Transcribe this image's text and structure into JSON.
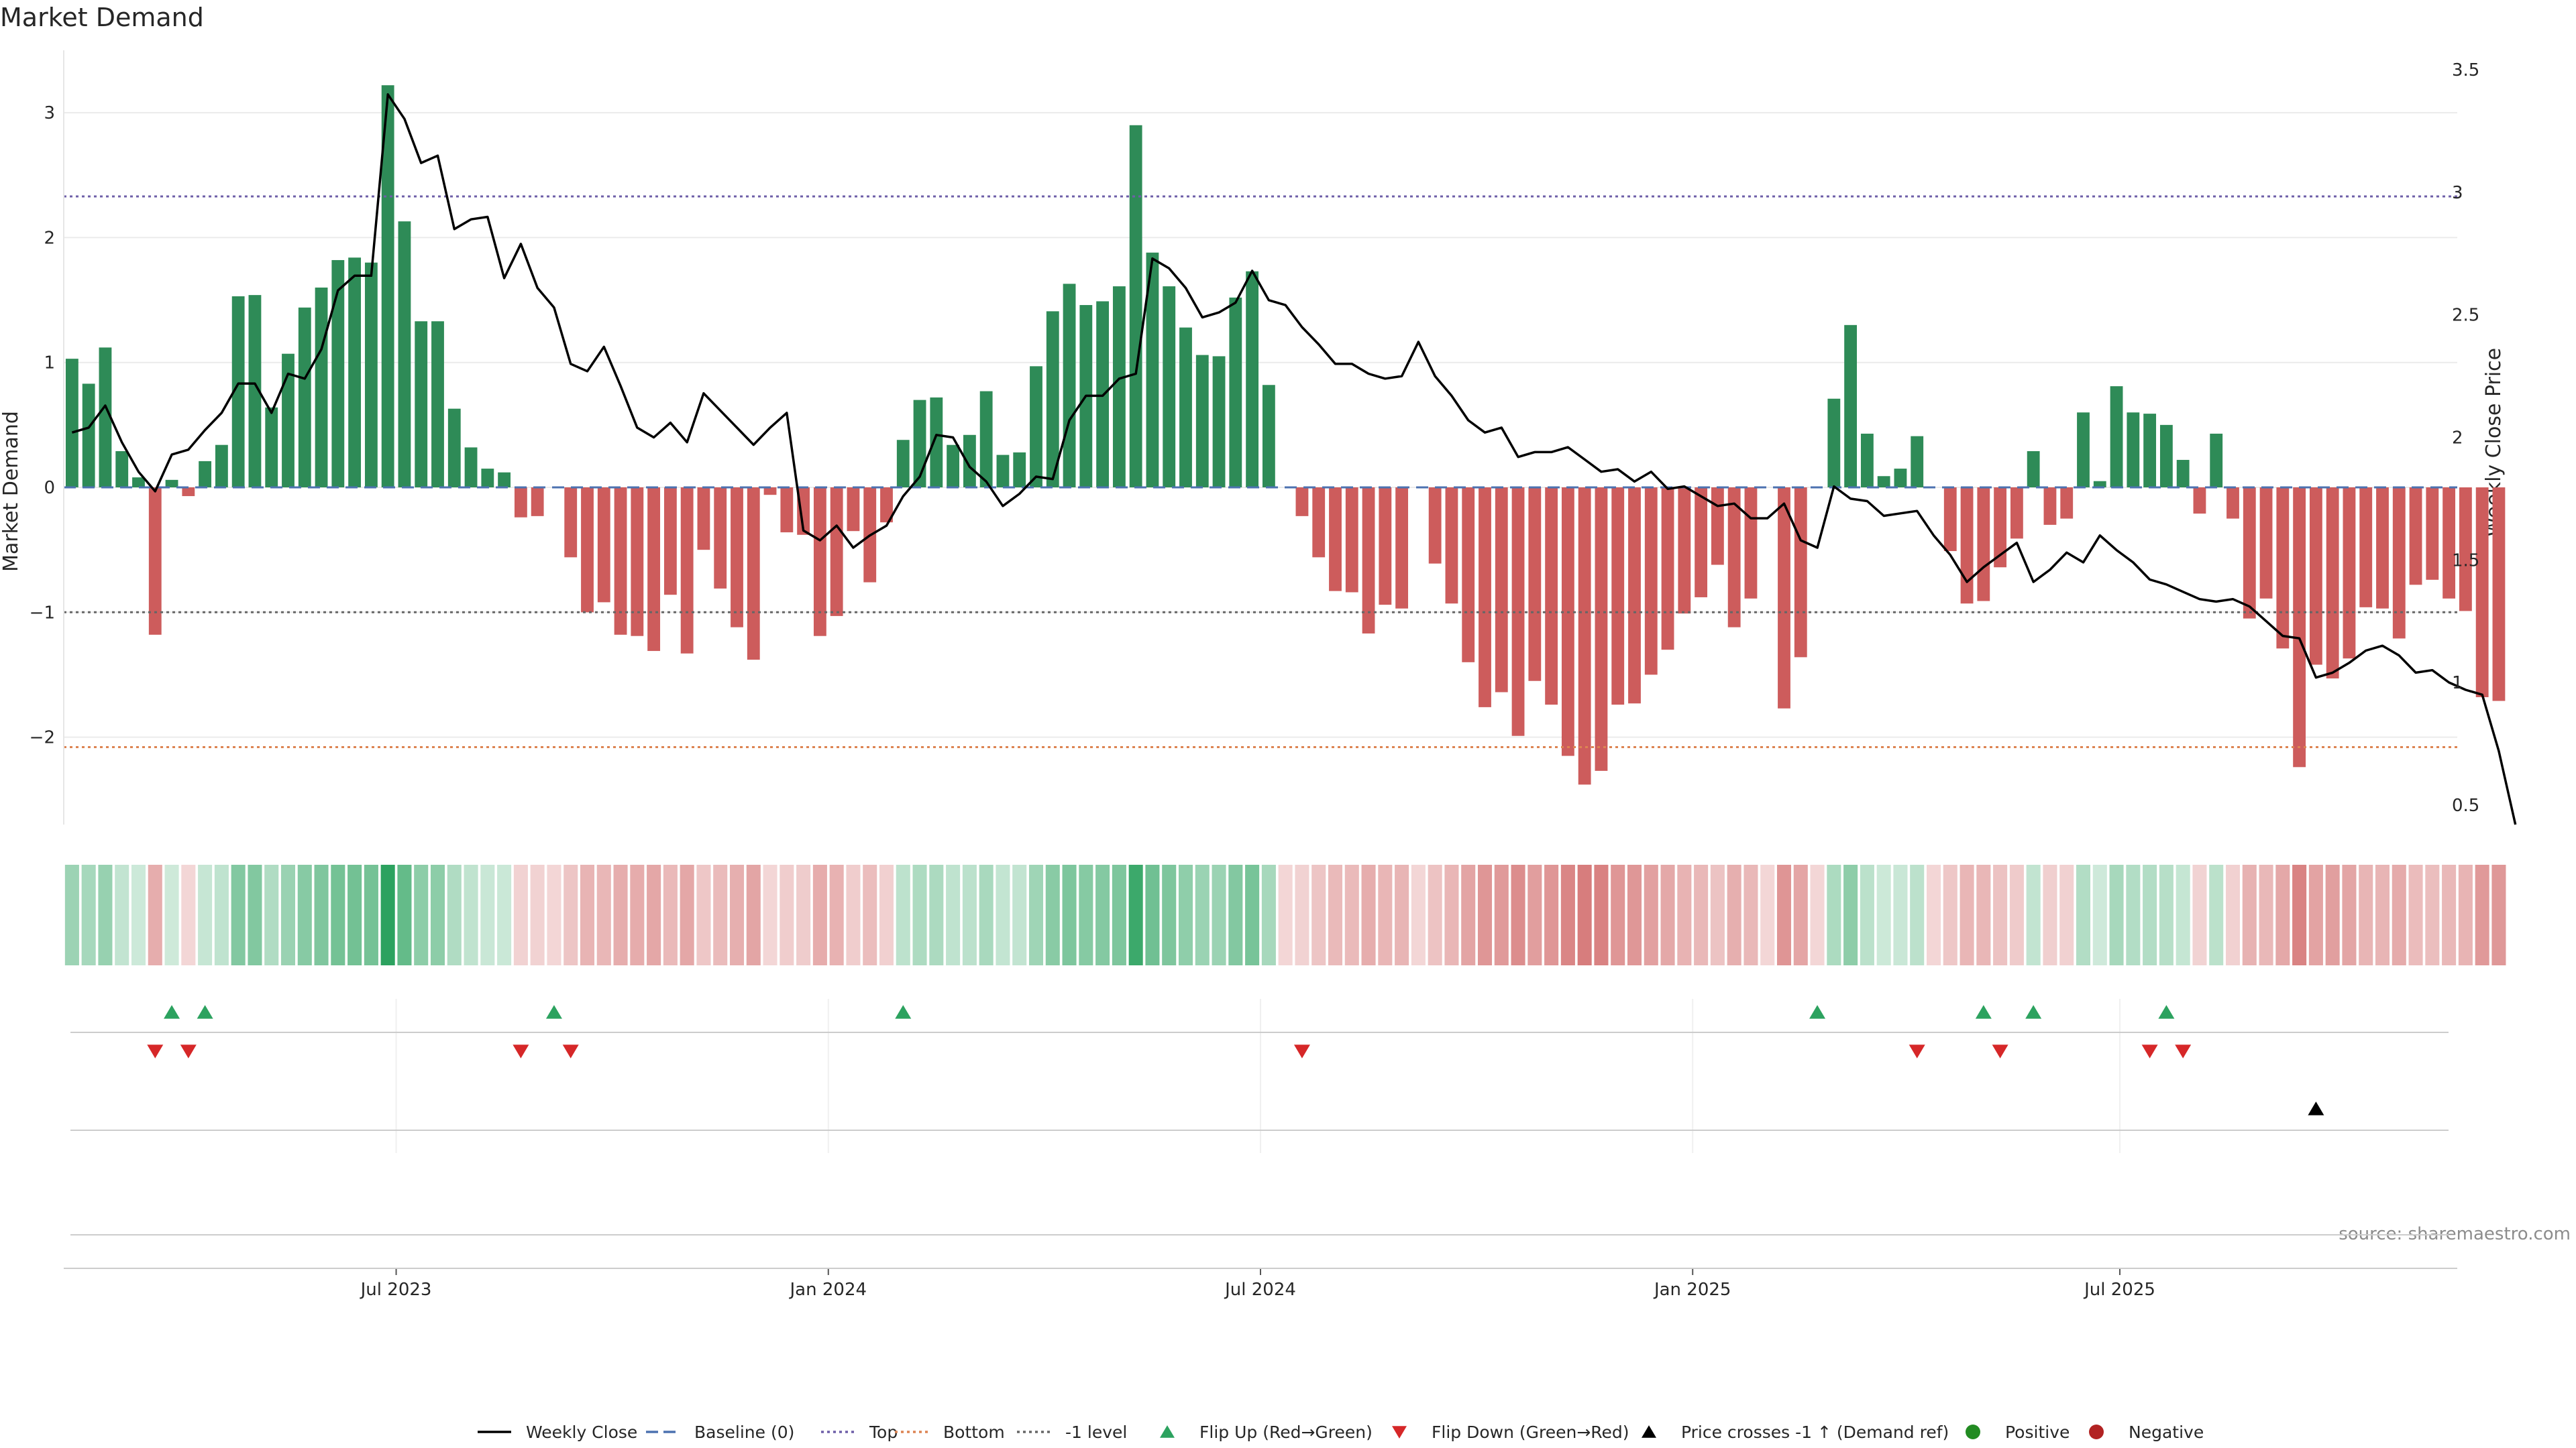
{
  "chart_data": {
    "type": "bar",
    "title": "Market Demand",
    "ylabel": "Market Demand",
    "y2label": "Weekly Close Price",
    "ylim": [
      -2.7,
      3.5
    ],
    "y2lim": [
      0.42,
      3.58
    ],
    "yticks": [
      -2,
      -1,
      0,
      1,
      2,
      3
    ],
    "y2ticks": [
      0.5,
      1,
      1.5,
      2,
      2.5,
      3,
      3.5
    ],
    "x_tick_labels": [
      "Jul 2023",
      "Jan 2024",
      "Jul 2024",
      "Jan 2025",
      "Jul 2025"
    ],
    "x_tick_weeks": [
      19.5,
      45.5,
      71.5,
      97.5,
      123.2
    ],
    "x_range_weeks": [
      -0.5,
      143.5
    ],
    "levels": {
      "top": 2.33,
      "bottom": -2.08,
      "minus_one": -1,
      "baseline": 0
    },
    "source": "source: sharemaestro.com",
    "demand": [
      1.03,
      0.83,
      1.12,
      0.29,
      0.08,
      -1.18,
      0.06,
      -0.07,
      0.21,
      0.34,
      1.53,
      1.54,
      0.64,
      1.07,
      1.44,
      1.6,
      1.82,
      1.84,
      1.8,
      3.22,
      2.13,
      1.33,
      1.33,
      0.63,
      0.32,
      0.15,
      0.12,
      -0.24,
      -0.23,
      0,
      -0.56,
      -1,
      -0.92,
      -1.18,
      -1.19,
      -1.31,
      -0.86,
      -1.33,
      -0.5,
      -0.81,
      -1.12,
      -1.38,
      -0.06,
      -0.36,
      -0.38,
      -1.19,
      -1.03,
      -0.35,
      -0.76,
      -0.28,
      0.38,
      0.7,
      0.72,
      0.34,
      0.42,
      0.77,
      0.26,
      0.28,
      0.97,
      1.41,
      1.63,
      1.46,
      1.49,
      1.61,
      2.9,
      1.88,
      1.61,
      1.28,
      1.06,
      1.05,
      1.52,
      1.73,
      0.82,
      0,
      -0.23,
      -0.56,
      -0.83,
      -0.84,
      -1.17,
      -0.94,
      -0.97,
      0,
      -0.61,
      -0.93,
      -1.4,
      -1.76,
      -1.64,
      -1.99,
      -1.55,
      -1.74,
      -2.15,
      -2.38,
      -2.27,
      -1.74,
      -1.73,
      -1.5,
      -1.3,
      -1.01,
      -0.88,
      -0.62,
      -1.12,
      -0.89,
      0,
      -1.77,
      -1.36,
      0,
      0.71,
      1.3,
      0.43,
      0.09,
      0.15,
      0.41,
      0,
      -0.51,
      -0.93,
      -0.91,
      -0.64,
      -0.41,
      0.29,
      -0.3,
      -0.25,
      0.6,
      0.05,
      0.81,
      0.6,
      0.59,
      0.5,
      0.22,
      -0.21,
      0.43,
      -0.25,
      -1.05,
      -0.89,
      -1.29,
      -2.24,
      -1.42,
      -1.53,
      -1.37,
      -0.96,
      -0.97,
      -1.21,
      -0.78,
      -0.74,
      -0.89,
      -0.99,
      -1.68,
      -1.71
    ],
    "price": [
      2.02,
      2.04,
      2.13,
      1.98,
      1.86,
      1.78,
      1.93,
      1.95,
      2.03,
      2.1,
      2.22,
      2.22,
      2.1,
      2.26,
      2.24,
      2.36,
      2.6,
      2.66,
      2.66,
      3.4,
      3.3,
      3.12,
      3.15,
      2.85,
      2.89,
      2.9,
      2.65,
      2.79,
      2.61,
      2.53,
      2.3,
      2.27,
      2.37,
      2.21,
      2.04,
      2,
      2.06,
      1.98,
      2.18,
      2.11,
      2.04,
      1.97,
      2.04,
      2.1,
      1.62,
      1.58,
      1.64,
      1.55,
      1.6,
      1.64,
      1.76,
      1.84,
      2.01,
      2,
      1.88,
      1.82,
      1.72,
      1.77,
      1.84,
      1.83,
      2.07,
      2.17,
      2.17,
      2.24,
      2.26,
      2.73,
      2.69,
      2.61,
      2.49,
      2.51,
      2.55,
      2.68,
      2.56,
      2.54,
      2.45,
      2.38,
      2.3,
      2.3,
      2.26,
      2.24,
      2.25,
      2.39,
      2.25,
      2.17,
      2.07,
      2.02,
      2.04,
      1.92,
      1.94,
      1.94,
      1.96,
      1.91,
      1.86,
      1.87,
      1.82,
      1.86,
      1.79,
      1.8,
      1.76,
      1.72,
      1.73,
      1.67,
      1.67,
      1.73,
      1.58,
      1.55,
      1.8,
      1.75,
      1.74,
      1.68,
      1.69,
      1.7,
      1.6,
      1.52,
      1.41,
      1.47,
      1.52,
      1.57,
      1.41,
      1.46,
      1.53,
      1.49,
      1.6,
      1.54,
      1.49,
      1.42,
      1.4,
      1.37,
      1.34,
      1.33,
      1.34,
      1.31,
      1.25,
      1.19,
      1.18,
      1.02,
      1.04,
      1.08,
      1.13,
      1.15,
      1.11,
      1.04,
      1.05,
      1,
      0.97,
      0.95,
      0.72,
      0.42
    ],
    "flip_up_weeks": [
      6,
      8,
      29,
      50,
      105,
      115,
      118,
      126
    ],
    "flip_down_weeks": [
      5,
      7,
      27,
      30,
      74,
      111,
      116,
      125,
      127
    ],
    "cross_weeks": [
      135
    ],
    "legend": [
      {
        "label": "Weekly Close",
        "marker": "line-solid",
        "color": "#000000"
      },
      {
        "label": "Baseline (0)",
        "marker": "line-dash",
        "color": "#4c72b0"
      },
      {
        "label": "Top",
        "marker": "line-dot",
        "color": "#6e5fa8"
      },
      {
        "label": "Bottom",
        "marker": "line-dot",
        "color": "#dd8452"
      },
      {
        "label": "-1 level",
        "marker": "line-dot",
        "color": "#666666"
      },
      {
        "label": "Flip Up (Red→Green)",
        "marker": "tri-up",
        "color": "#2ca25f"
      },
      {
        "label": "Flip Down (Green→Red)",
        "marker": "tri-down",
        "color": "#d62728"
      },
      {
        "label": "Price crosses -1 ↑ (Demand ref)",
        "marker": "tri-up",
        "color": "#000000"
      },
      {
        "label": "Positive",
        "marker": "dot",
        "color": "#228b22"
      },
      {
        "label": "Negative",
        "marker": "dot",
        "color": "#b22222"
      }
    ],
    "colors": {
      "positive_bar": "#2e8b57",
      "negative_bar": "#cd5c5c",
      "price_line": "#000000",
      "strip_positive": "#2ca25f",
      "strip_negative": "#cd5c5c",
      "flip_up": "#2ca25f",
      "flip_down": "#d62728",
      "cross": "#000000",
      "grid": "#ebebeb",
      "panel_line": "#cccccc"
    }
  }
}
